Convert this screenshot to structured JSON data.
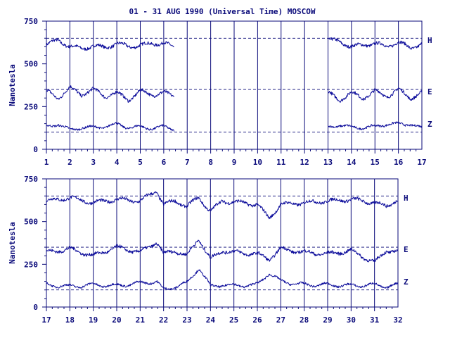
{
  "chart_data": [
    {
      "type": "line",
      "title": "01 - 31 AUG 1990 (Universal Time) MOSCOW",
      "ylabel": "Nanotesla",
      "xlabel": "",
      "x_ticks": [
        "1",
        "2",
        "3",
        "4",
        "5",
        "6",
        "7",
        "8",
        "9",
        "10",
        "11",
        "12",
        "13",
        "14",
        "15",
        "16",
        "17"
      ],
      "xlim": [
        1,
        17
      ],
      "y_ticks": [
        "0",
        "250",
        "500",
        "750"
      ],
      "ylim": [
        0,
        750
      ],
      "grid": "vertical-day-lines",
      "reference_levels": [
        650,
        350,
        100
      ],
      "data_gaps": [
        [
          6.45,
          13.0
        ]
      ],
      "series": [
        {
          "name": "H",
          "baseline": 620,
          "x": [
            1,
            1.5,
            2,
            2.5,
            3,
            3.5,
            4,
            4.5,
            5,
            5.5,
            6,
            6.45,
            13,
            13.5,
            14,
            14.5,
            15,
            15.5,
            16,
            16.5,
            17
          ],
          "values": [
            610,
            640,
            600,
            590,
            605,
            595,
            620,
            600,
            610,
            615,
            625,
            590,
            640,
            630,
            600,
            610,
            620,
            600,
            630,
            590,
            620
          ]
        },
        {
          "name": "E",
          "baseline": 320,
          "x": [
            1,
            1.5,
            2,
            2.5,
            3,
            3.5,
            4,
            4.5,
            5,
            5.5,
            6,
            6.45,
            13,
            13.5,
            14,
            14.5,
            15,
            15.5,
            16,
            16.5,
            17
          ],
          "values": [
            340,
            300,
            360,
            320,
            350,
            310,
            330,
            290,
            340,
            320,
            330,
            310,
            330,
            290,
            330,
            300,
            340,
            310,
            350,
            300,
            330
          ]
        },
        {
          "name": "Z",
          "baseline": 130,
          "x": [
            1,
            1.5,
            2,
            2.5,
            3,
            3.5,
            4,
            4.5,
            5,
            5.5,
            6,
            6.45,
            13,
            13.5,
            14,
            14.5,
            15,
            15.5,
            16,
            16.5,
            17
          ],
          "values": [
            130,
            150,
            110,
            130,
            125,
            135,
            145,
            130,
            128,
            125,
            130,
            120,
            125,
            145,
            125,
            130,
            130,
            150,
            145,
            150,
            120
          ]
        }
      ]
    },
    {
      "type": "line",
      "title": "",
      "ylabel": "Nanotesla",
      "xlabel": "",
      "x_ticks": [
        "17",
        "18",
        "19",
        "20",
        "21",
        "22",
        "23",
        "24",
        "25",
        "26",
        "27",
        "28",
        "29",
        "30",
        "31",
        "32"
      ],
      "xlim": [
        17,
        32
      ],
      "y_ticks": [
        "0",
        "250",
        "500",
        "750"
      ],
      "ylim": [
        0,
        750
      ],
      "grid": "vertical-day-lines",
      "reference_levels": [
        650,
        350,
        100
      ],
      "data_gaps": [],
      "series": [
        {
          "name": "H",
          "baseline": 620,
          "x": [
            17,
            18,
            19,
            20,
            21,
            21.7,
            22,
            22.5,
            23,
            23.5,
            24,
            24.5,
            25,
            26,
            26.5,
            27,
            28,
            29,
            30,
            31,
            31.5,
            32
          ],
          "values": [
            620,
            640,
            610,
            630,
            620,
            680,
            600,
            620,
            590,
            640,
            560,
            620,
            615,
            600,
            520,
            600,
            610,
            620,
            630,
            610,
            590,
            630
          ]
        },
        {
          "name": "E",
          "baseline": 320,
          "x": [
            17,
            18,
            19,
            20,
            21,
            21.7,
            22,
            22.5,
            23,
            23.5,
            24,
            24.5,
            25,
            26,
            26.5,
            27,
            28,
            29,
            30,
            31,
            31.5,
            32
          ],
          "values": [
            320,
            340,
            300,
            350,
            320,
            380,
            310,
            330,
            300,
            400,
            280,
            330,
            320,
            310,
            280,
            340,
            320,
            310,
            330,
            260,
            330,
            325
          ]
        },
        {
          "name": "Z",
          "baseline": 130,
          "x": [
            17,
            18,
            19,
            20,
            21,
            21.7,
            22,
            22.5,
            23,
            23.5,
            24,
            24.5,
            25,
            26,
            26.5,
            27,
            28,
            29,
            30,
            31,
            31.5,
            32
          ],
          "values": [
            130,
            120,
            130,
            125,
            140,
            150,
            100,
            120,
            140,
            230,
            120,
            130,
            125,
            130,
            200,
            150,
            130,
            130,
            125,
            130,
            120,
            130
          ]
        }
      ]
    }
  ]
}
